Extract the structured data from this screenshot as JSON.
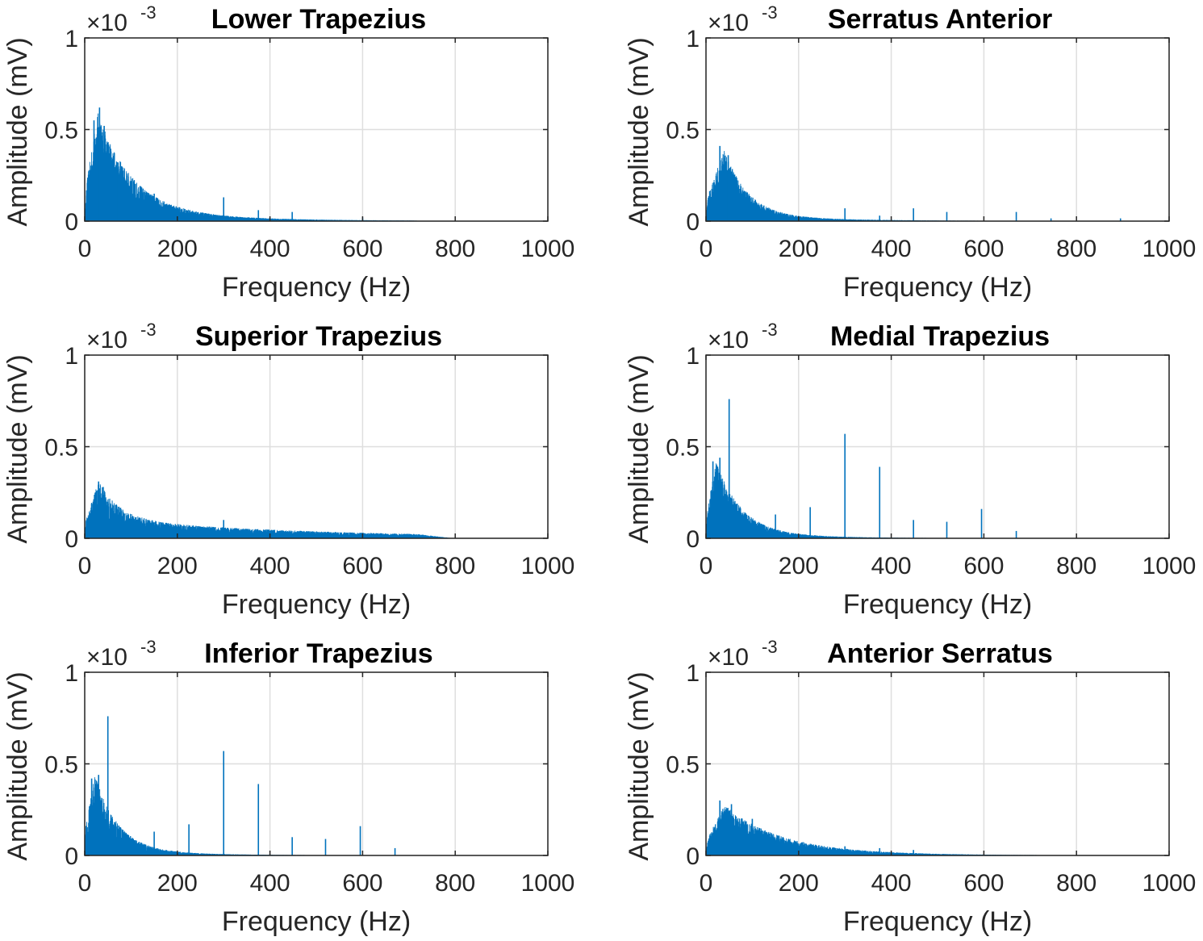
{
  "chart_data": [
    {
      "type": "line",
      "title": "Lower Trapezius",
      "xlabel": "Frequency (Hz)",
      "ylabel": "Amplitude (mV)",
      "y_multiplier": {
        "base": "×10",
        "exponent": "-3"
      },
      "xlim": [
        0,
        1000
      ],
      "ylim": [
        0,
        1
      ],
      "xticks": [
        "0",
        "200",
        "400",
        "600",
        "800",
        "1000"
      ],
      "yticks": [
        "0",
        "0.5",
        "1"
      ],
      "grid": true,
      "color": "#0072BD",
      "envelope": {
        "peak_freq": 28,
        "peak_amp": 0.5,
        "rise_start": 4,
        "decay": 75,
        "tail_amp": 0.04,
        "tail_decay": 260,
        "cutoff": 700
      },
      "spikes": [
        {
          "freq": 20,
          "amp": 0.55
        },
        {
          "freq": 32,
          "amp": 0.62
        },
        {
          "freq": 42,
          "amp": 0.52
        },
        {
          "freq": 72,
          "amp": 0.32
        },
        {
          "freq": 100,
          "amp": 0.22
        },
        {
          "freq": 150,
          "amp": 0.15
        },
        {
          "freq": 300,
          "amp": 0.13
        },
        {
          "freq": 375,
          "amp": 0.06
        },
        {
          "freq": 448,
          "amp": 0.05
        },
        {
          "freq": 600,
          "amp": 0.02
        }
      ]
    },
    {
      "type": "line",
      "title": "Serratus Anterior",
      "xlabel": "Frequency (Hz)",
      "ylabel": "Amplitude (mV)",
      "y_multiplier": {
        "base": "×10",
        "exponent": "-3"
      },
      "xlim": [
        0,
        1000
      ],
      "ylim": [
        0,
        1
      ],
      "xticks": [
        "0",
        "200",
        "400",
        "600",
        "800",
        "1000"
      ],
      "yticks": [
        "0",
        "0.5",
        "1"
      ],
      "grid": true,
      "color": "#0072BD",
      "envelope": {
        "peak_freq": 40,
        "peak_amp": 0.33,
        "rise_start": 4,
        "decay": 50,
        "tail_amp": 0.025,
        "tail_decay": 220,
        "cutoff": 950
      },
      "spikes": [
        {
          "freq": 30,
          "amp": 0.41
        },
        {
          "freq": 48,
          "amp": 0.36
        },
        {
          "freq": 300,
          "amp": 0.07
        },
        {
          "freq": 375,
          "amp": 0.03
        },
        {
          "freq": 448,
          "amp": 0.07
        },
        {
          "freq": 520,
          "amp": 0.05
        },
        {
          "freq": 670,
          "amp": 0.05
        },
        {
          "freq": 745,
          "amp": 0.015
        },
        {
          "freq": 895,
          "amp": 0.015
        }
      ]
    },
    {
      "type": "line",
      "title": "Superior Trapezius",
      "xlabel": "Frequency (Hz)",
      "ylabel": "Amplitude (mV)",
      "y_multiplier": {
        "base": "×10",
        "exponent": "-3"
      },
      "xlim": [
        0,
        1000
      ],
      "ylim": [
        0,
        1
      ],
      "xticks": [
        "0",
        "200",
        "400",
        "600",
        "800",
        "1000"
      ],
      "yticks": [
        "0",
        "0.5",
        "1"
      ],
      "grid": true,
      "color": "#0072BD",
      "envelope": {
        "peak_freq": 30,
        "peak_amp": 0.26,
        "rise_start": 3,
        "decay": 45,
        "tail_amp": 0.09,
        "tail_decay": 450,
        "cutoff": 720
      },
      "spikes": [
        {
          "freq": 30,
          "amp": 0.31
        },
        {
          "freq": 40,
          "amp": 0.28
        },
        {
          "freq": 300,
          "amp": 0.1
        },
        {
          "freq": 600,
          "amp": 0.03
        }
      ]
    },
    {
      "type": "line",
      "title": "Medial Trapezius",
      "xlabel": "Frequency (Hz)",
      "ylabel": "Amplitude (mV)",
      "y_multiplier": {
        "base": "×10",
        "exponent": "-3"
      },
      "xlim": [
        0,
        1000
      ],
      "ylim": [
        0,
        1
      ],
      "xticks": [
        "0",
        "200",
        "400",
        "600",
        "800",
        "1000"
      ],
      "yticks": [
        "0",
        "0.5",
        "1"
      ],
      "grid": true,
      "color": "#0072BD",
      "envelope": {
        "peak_freq": 22,
        "peak_amp": 0.35,
        "rise_start": 2,
        "decay": 55,
        "tail_amp": 0.02,
        "tail_decay": 200,
        "cutoff": 800
      },
      "spikes": [
        {
          "freq": 15,
          "amp": 0.42
        },
        {
          "freq": 30,
          "amp": 0.44
        },
        {
          "freq": 50,
          "amp": 0.76
        },
        {
          "freq": 150,
          "amp": 0.13
        },
        {
          "freq": 225,
          "amp": 0.17
        },
        {
          "freq": 300,
          "amp": 0.57
        },
        {
          "freq": 375,
          "amp": 0.39
        },
        {
          "freq": 448,
          "amp": 0.1
        },
        {
          "freq": 520,
          "amp": 0.09
        },
        {
          "freq": 595,
          "amp": 0.16
        },
        {
          "freq": 670,
          "amp": 0.04
        }
      ]
    },
    {
      "type": "line",
      "title": "Inferior Trapezius",
      "xlabel": "Frequency (Hz)",
      "ylabel": "Amplitude (mV)",
      "y_multiplier": {
        "base": "×10",
        "exponent": "-3"
      },
      "xlim": [
        0,
        1000
      ],
      "ylim": [
        0,
        1
      ],
      "xticks": [
        "0",
        "200",
        "400",
        "600",
        "800",
        "1000"
      ],
      "yticks": [
        "0",
        "0.5",
        "1"
      ],
      "grid": true,
      "color": "#0072BD",
      "envelope": {
        "peak_freq": 22,
        "peak_amp": 0.37,
        "rise_start": 2,
        "decay": 50,
        "tail_amp": 0.02,
        "tail_decay": 200,
        "cutoff": 800
      },
      "spikes": [
        {
          "freq": 15,
          "amp": 0.42
        },
        {
          "freq": 30,
          "amp": 0.44
        },
        {
          "freq": 50,
          "amp": 0.76
        },
        {
          "freq": 150,
          "amp": 0.13
        },
        {
          "freq": 225,
          "amp": 0.17
        },
        {
          "freq": 300,
          "amp": 0.57
        },
        {
          "freq": 375,
          "amp": 0.39
        },
        {
          "freq": 448,
          "amp": 0.1
        },
        {
          "freq": 520,
          "amp": 0.09
        },
        {
          "freq": 595,
          "amp": 0.16
        },
        {
          "freq": 670,
          "amp": 0.04
        }
      ]
    },
    {
      "type": "line",
      "title": "Anterior Serratus",
      "xlabel": "Frequency (Hz)",
      "ylabel": "Amplitude (mV)",
      "y_multiplier": {
        "base": "×10",
        "exponent": "-3"
      },
      "xlim": [
        0,
        1000
      ],
      "ylim": [
        0,
        1
      ],
      "xticks": [
        "0",
        "200",
        "400",
        "600",
        "800",
        "1000"
      ],
      "yticks": [
        "0",
        "0.5",
        "1"
      ],
      "grid": true,
      "color": "#0072BD",
      "envelope": {
        "peak_freq": 40,
        "peak_amp": 0.23,
        "rise_start": 4,
        "decay": 120,
        "tail_amp": 0.02,
        "tail_decay": 250,
        "cutoff": 900
      },
      "spikes": [
        {
          "freq": 30,
          "amp": 0.3
        },
        {
          "freq": 55,
          "amp": 0.28
        },
        {
          "freq": 100,
          "amp": 0.2
        },
        {
          "freq": 300,
          "amp": 0.05
        },
        {
          "freq": 375,
          "amp": 0.04
        },
        {
          "freq": 448,
          "amp": 0.03
        }
      ]
    }
  ]
}
